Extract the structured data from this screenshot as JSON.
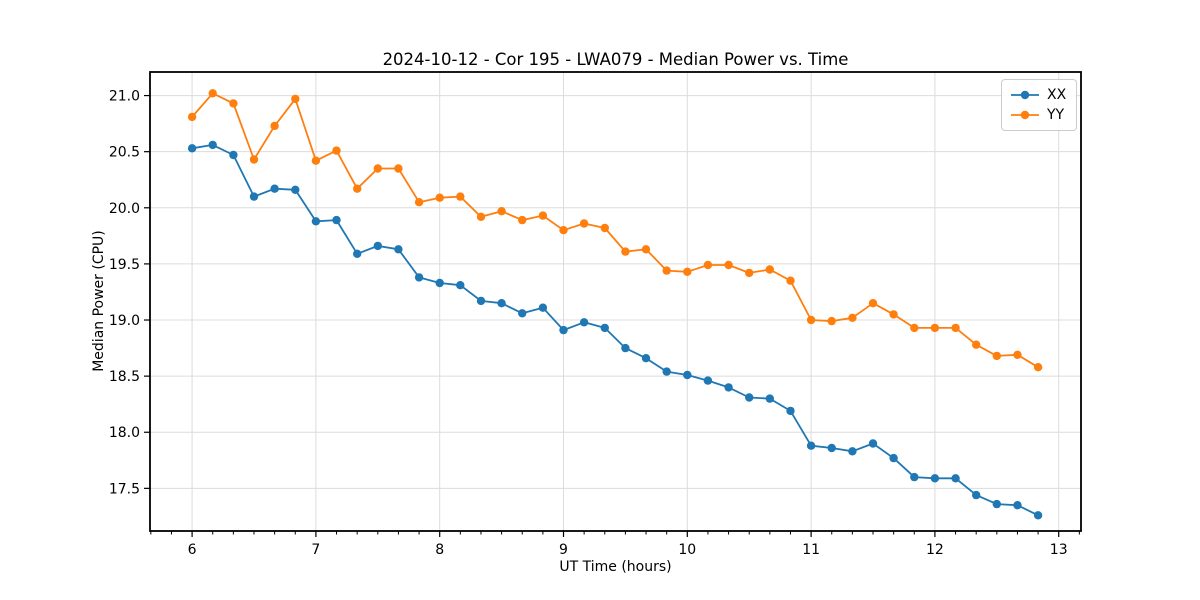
{
  "chart_data": {
    "type": "line",
    "title": "2024-10-12 - Cor 195 - LWA079 - Median Power vs. Time",
    "xlabel": "UT Time (hours)",
    "ylabel": "Median Power (CPU)",
    "xlim": [
      5.66,
      13.18
    ],
    "ylim": [
      17.12,
      21.21
    ],
    "x_major_ticks": [
      6,
      7,
      8,
      9,
      10,
      11,
      12,
      13
    ],
    "x_minor_step_hours": 0.1667,
    "y_ticks": [
      17.5,
      18.0,
      18.5,
      19.0,
      19.5,
      20.0,
      20.5,
      21.0
    ],
    "grid": true,
    "legend_position": "upper right",
    "x": [
      6,
      6.1667,
      6.3333,
      6.5,
      6.6667,
      6.8333,
      7,
      7.1667,
      7.3333,
      7.5,
      7.6667,
      7.8333,
      8,
      8.1667,
      8.3333,
      8.5,
      8.6667,
      8.8333,
      9,
      9.1667,
      9.3333,
      9.5,
      9.6667,
      9.8333,
      10,
      10.1667,
      10.3333,
      10.5,
      10.6667,
      10.8333,
      11,
      11.1667,
      11.3333,
      11.5,
      11.6667,
      11.8333,
      12,
      12.1667,
      12.3333,
      12.5,
      12.6667,
      12.8333
    ],
    "series": [
      {
        "name": "XX",
        "color": "#1f77b4",
        "values": [
          20.53,
          20.56,
          20.47,
          20.1,
          20.17,
          20.16,
          19.88,
          19.89,
          19.59,
          19.66,
          19.63,
          19.38,
          19.33,
          19.31,
          19.17,
          19.15,
          19.06,
          19.11,
          18.91,
          18.98,
          18.93,
          18.75,
          18.66,
          18.54,
          18.51,
          18.46,
          18.4,
          18.31,
          18.3,
          18.19,
          17.88,
          17.86,
          17.83,
          17.9,
          17.77,
          17.6,
          17.59,
          17.59,
          17.44,
          17.36,
          17.35,
          17.26
        ]
      },
      {
        "name": "YY",
        "color": "#ff7f0e",
        "values": [
          20.81,
          21.02,
          20.93,
          20.43,
          20.73,
          20.97,
          20.42,
          20.51,
          20.17,
          20.35,
          20.35,
          20.05,
          20.09,
          20.1,
          19.92,
          19.97,
          19.89,
          19.93,
          19.8,
          19.86,
          19.82,
          19.61,
          19.63,
          19.44,
          19.43,
          19.49,
          19.49,
          19.42,
          19.45,
          19.35,
          19.0,
          18.99,
          19.02,
          19.15,
          19.05,
          18.93,
          18.93,
          18.93,
          18.78,
          18.68,
          18.69,
          18.58
        ]
      }
    ],
    "style": {
      "grid_color": "#dcdcdc",
      "spine_color": "#000000",
      "marker_radius": 4.2,
      "line_width": 1.8
    }
  }
}
